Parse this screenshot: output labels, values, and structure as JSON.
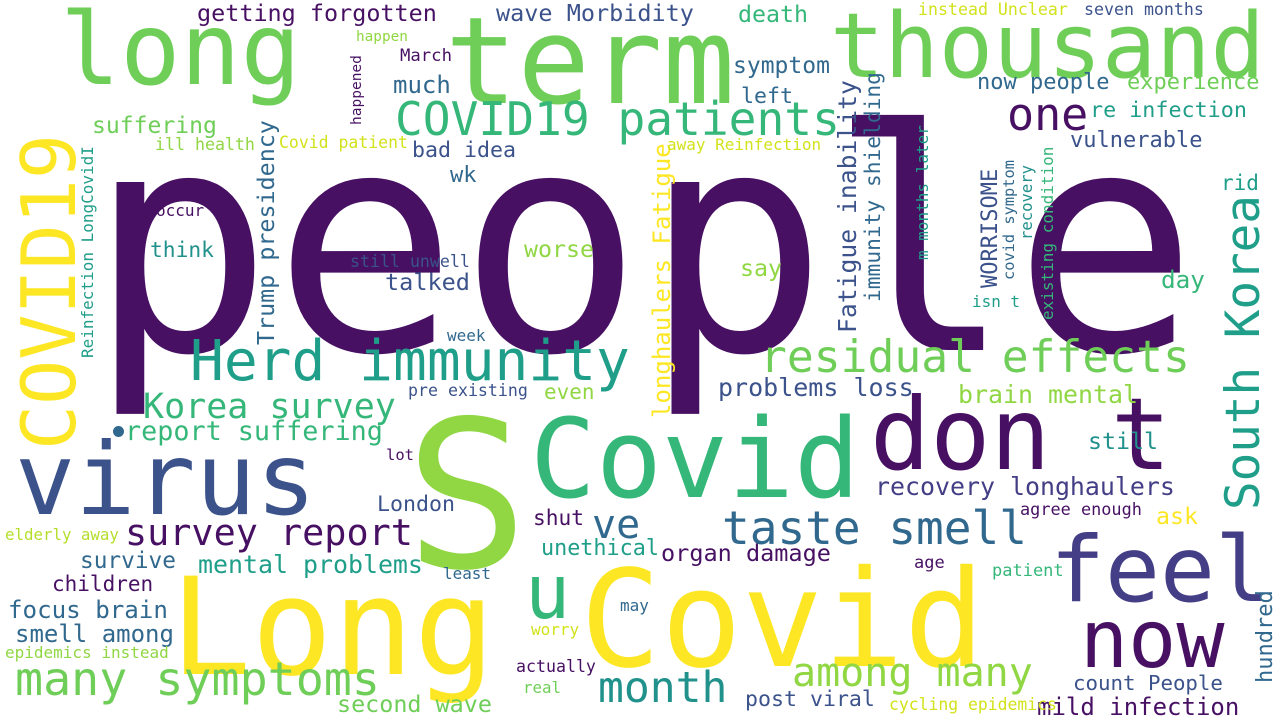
{
  "palette": {
    "dark_purple": "#471063",
    "indigo": "#3b528b",
    "blue": "#31688e",
    "teal": "#21918c",
    "green_teal": "#1f9e89",
    "green": "#35b779",
    "light_green": "#6ece58",
    "lime": "#90d743",
    "yellow": "#fde725"
  },
  "words": [
    {
      "text": "people",
      "color": "#471063"
    },
    {
      "text": "S",
      "color": "#90d743"
    },
    {
      "text": "long",
      "color": "#6ece58"
    },
    {
      "text": "term",
      "color": "#6ece58"
    },
    {
      "text": "thousand",
      "color": "#6ece58"
    },
    {
      "text": "virus",
      "color": "#3b528b"
    },
    {
      "text": "Long",
      "color": "#fde725"
    },
    {
      "text": "Covid",
      "color": "#fde725"
    },
    {
      "text": "Covid",
      "color": "#35b779"
    },
    {
      "text": "don t",
      "color": "#471063"
    },
    {
      "text": "feel",
      "color": "#433e85"
    },
    {
      "text": "now",
      "color": "#471063"
    },
    {
      "text": "u",
      "color": "#35b779"
    },
    {
      "text": "COVID19",
      "color": "#fde725"
    },
    {
      "text": "COVID19 patients",
      "color": "#35b779"
    },
    {
      "text": "one",
      "color": "#471063"
    },
    {
      "text": "Herd immunity",
      "color": "#1f9e89"
    },
    {
      "text": "residual effects",
      "color": "#6ece58"
    },
    {
      "text": "South Korea",
      "color": "#1f9e89"
    },
    {
      "text": "taste smell",
      "color": "#31688e"
    },
    {
      "text": "ve",
      "color": "#31688e"
    },
    {
      "text": "survey report",
      "color": "#471063"
    },
    {
      "text": "Korea survey",
      "color": "#35b779"
    },
    {
      "text": "many symptoms",
      "color": "#6ece58"
    },
    {
      "text": "among many",
      "color": "#90d743"
    },
    {
      "text": "month",
      "color": "#21918c"
    },
    {
      "text": "report suffering",
      "color": "#35b779"
    },
    {
      "text": "recovery longhaulers",
      "color": "#433e85"
    },
    {
      "text": "Fatigue inability",
      "color": "#3b528b"
    },
    {
      "text": "immunity shielding",
      "color": "#31688e"
    },
    {
      "text": "longhaulers Fatigue",
      "color": "#fde725"
    },
    {
      "text": "Trump presidency",
      "color": "#31688e"
    },
    {
      "text": "problems loss",
      "color": "#3b528b"
    },
    {
      "text": "brain mental",
      "color": "#90d743"
    },
    {
      "text": "getting forgotten",
      "color": "#471063"
    },
    {
      "text": "wave Morbidity",
      "color": "#3b528b"
    },
    {
      "text": "death",
      "color": "#35b779"
    },
    {
      "text": "instead Unclear",
      "color": "#d2e21b"
    },
    {
      "text": "seven months",
      "color": "#3b528b"
    },
    {
      "text": "now people",
      "color": "#31688e"
    },
    {
      "text": "experience",
      "color": "#6ece58"
    },
    {
      "text": "re infection",
      "color": "#1f9e89"
    },
    {
      "text": "vulnerable",
      "color": "#3b528b"
    },
    {
      "text": "symptom",
      "color": "#31688e"
    },
    {
      "text": "left",
      "color": "#31688e"
    },
    {
      "text": "much",
      "color": "#31688e"
    },
    {
      "text": "happen",
      "color": "#90d743"
    },
    {
      "text": "March",
      "color": "#471063"
    },
    {
      "text": "happened",
      "color": "#471063"
    },
    {
      "text": "suffering",
      "color": "#6ece58"
    },
    {
      "text": "ill health",
      "color": "#90d743"
    },
    {
      "text": "Covid patient",
      "color": "#d2e21b"
    },
    {
      "text": "bad idea",
      "color": "#3b528b"
    },
    {
      "text": "away Reinfection",
      "color": "#d2e21b"
    },
    {
      "text": "wk",
      "color": "#31688e"
    },
    {
      "text": "occur",
      "color": "#471063"
    },
    {
      "text": "think",
      "color": "#21918c"
    },
    {
      "text": "still unwell",
      "color": "#3b528b"
    },
    {
      "text": "talked",
      "color": "#3b528b"
    },
    {
      "text": "worse",
      "color": "#90d743"
    },
    {
      "text": "say",
      "color": "#90d743"
    },
    {
      "text": "day",
      "color": "#35b779"
    },
    {
      "text": "rid",
      "color": "#1f9e89"
    },
    {
      "text": "isn t",
      "color": "#1f9e89"
    },
    {
      "text": "week",
      "color": "#31688e"
    },
    {
      "text": "pre existing",
      "color": "#3b528b"
    },
    {
      "text": "even",
      "color": "#90d743"
    },
    {
      "text": "still",
      "color": "#21918c"
    },
    {
      "text": "lot",
      "color": "#471063"
    },
    {
      "text": "London",
      "color": "#3b528b"
    },
    {
      "text": "shut",
      "color": "#471063"
    },
    {
      "text": "unethical",
      "color": "#1f9e89"
    },
    {
      "text": "organ damage",
      "color": "#471063"
    },
    {
      "text": "agree enough",
      "color": "#471063"
    },
    {
      "text": "ask",
      "color": "#fde725"
    },
    {
      "text": "age",
      "color": "#471063"
    },
    {
      "text": "patient",
      "color": "#35b779"
    },
    {
      "text": "hundred",
      "color": "#31688e"
    },
    {
      "text": "elderly away",
      "color": "#b5de2b"
    },
    {
      "text": "survive",
      "color": "#31688e"
    },
    {
      "text": "mental problems",
      "color": "#1f9e89"
    },
    {
      "text": "children",
      "color": "#471063"
    },
    {
      "text": "focus brain",
      "color": "#31688e"
    },
    {
      "text": "smell among",
      "color": "#31688e"
    },
    {
      "text": "epidemics instead",
      "color": "#90d743"
    },
    {
      "text": "least",
      "color": "#31688e"
    },
    {
      "text": "may",
      "color": "#31688e"
    },
    {
      "text": "worry",
      "color": "#d2e21b"
    },
    {
      "text": "actually",
      "color": "#471063"
    },
    {
      "text": "real",
      "color": "#6ece58"
    },
    {
      "text": "post viral",
      "color": "#3b528b"
    },
    {
      "text": "second wave",
      "color": "#6ece58"
    },
    {
      "text": "count People",
      "color": "#3b528b"
    },
    {
      "text": "mild infection",
      "color": "#471063"
    },
    {
      "text": "cycling epidemics",
      "color": "#d2e21b"
    },
    {
      "text": "Reinfection LongCovidI",
      "color": "#1f9e89"
    },
    {
      "text": "WORRISOME",
      "color": "#3b528b"
    },
    {
      "text": "covid symptom",
      "color": "#31688e"
    },
    {
      "text": "recovery",
      "color": "#21918c"
    },
    {
      "text": "existing condition",
      "color": "#35b779"
    },
    {
      "text": "m months later",
      "color": "#1f9e89"
    }
  ]
}
